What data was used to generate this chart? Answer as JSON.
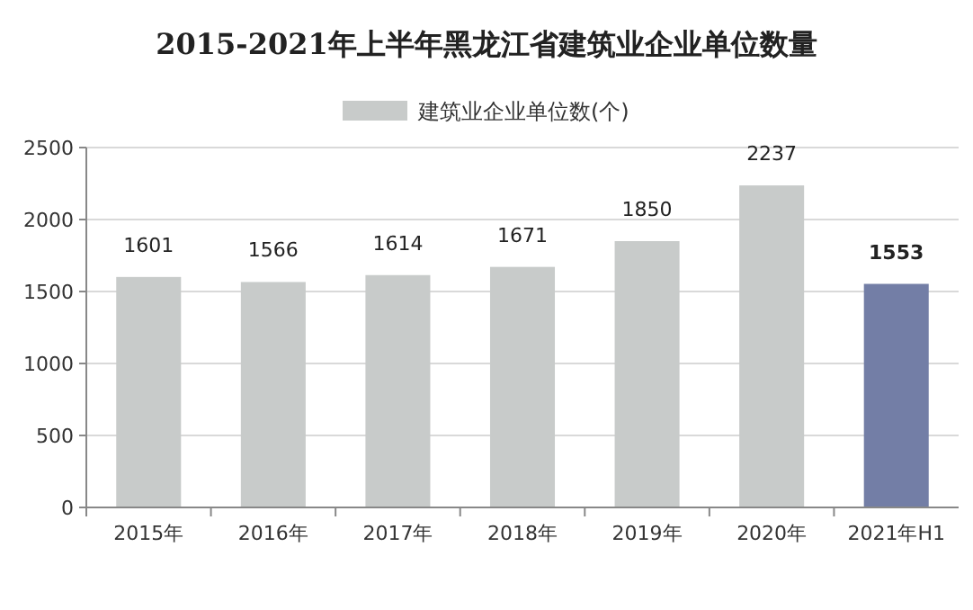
{
  "chart_data": {
    "type": "bar",
    "title": "2015-2021年上半年黑龙江省建筑业企业单位数量",
    "categories": [
      "2015年",
      "2016年",
      "2017年",
      "2018年",
      "2019年",
      "2020年",
      "2021年H1"
    ],
    "series": [
      {
        "name": "建筑业企业单位数(个)",
        "color": "#c8cbca",
        "colors": [
          "#c8cbca",
          "#c8cbca",
          "#c8cbca",
          "#c8cbca",
          "#c8cbca",
          "#c8cbca",
          "#737ea6"
        ],
        "values": [
          1601,
          1566,
          1614,
          1671,
          1850,
          2237,
          1553
        ]
      }
    ],
    "ylim": [
      0,
      2500
    ],
    "yticks": [
      0,
      500,
      1000,
      1500,
      2000,
      2500
    ],
    "grid": "y",
    "legend": "top",
    "data_labels": true
  }
}
